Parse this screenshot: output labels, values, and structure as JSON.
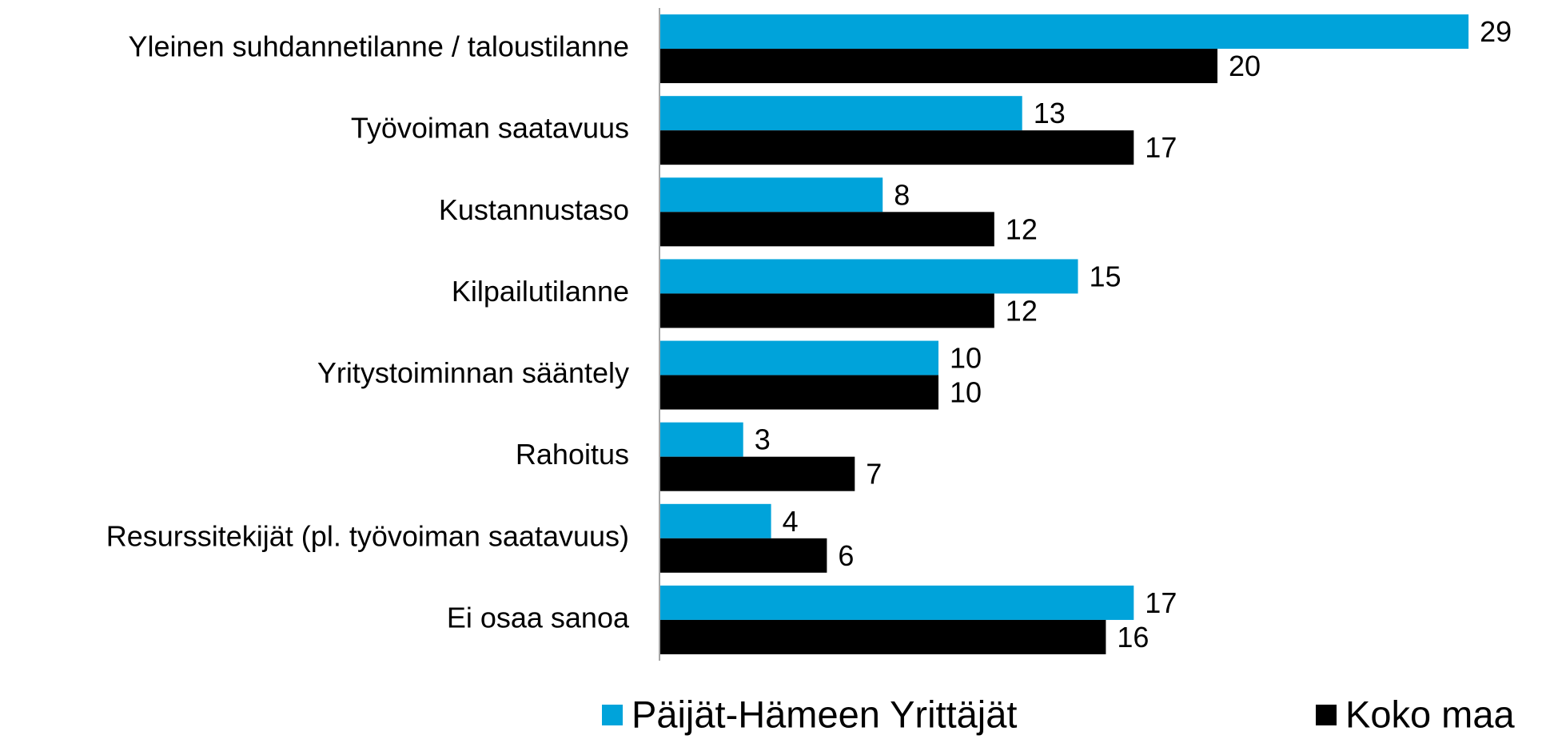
{
  "chart_data": {
    "type": "bar",
    "orientation": "horizontal",
    "categories": [
      "Yleinen suhdannetilanne / taloustilanne",
      "Työvoiman saatavuus",
      "Kustannustaso",
      "Kilpailutilanne",
      "Yritystoiminnan sääntely",
      "Rahoitus",
      "Resurssitekijät (pl. työvoiman saatavuus)",
      "Ei osaa sanoa"
    ],
    "series": [
      {
        "name": "Päijät-Hämeen Yrittäjät",
        "color": "#00a3da",
        "values": [
          29,
          13,
          8,
          15,
          10,
          3,
          4,
          17
        ]
      },
      {
        "name": "Koko maa",
        "color": "#000000",
        "values": [
          20,
          17,
          12,
          12,
          10,
          7,
          6,
          16
        ]
      }
    ],
    "xlim": [
      0,
      30
    ],
    "grid": false,
    "legend": "bottom"
  }
}
